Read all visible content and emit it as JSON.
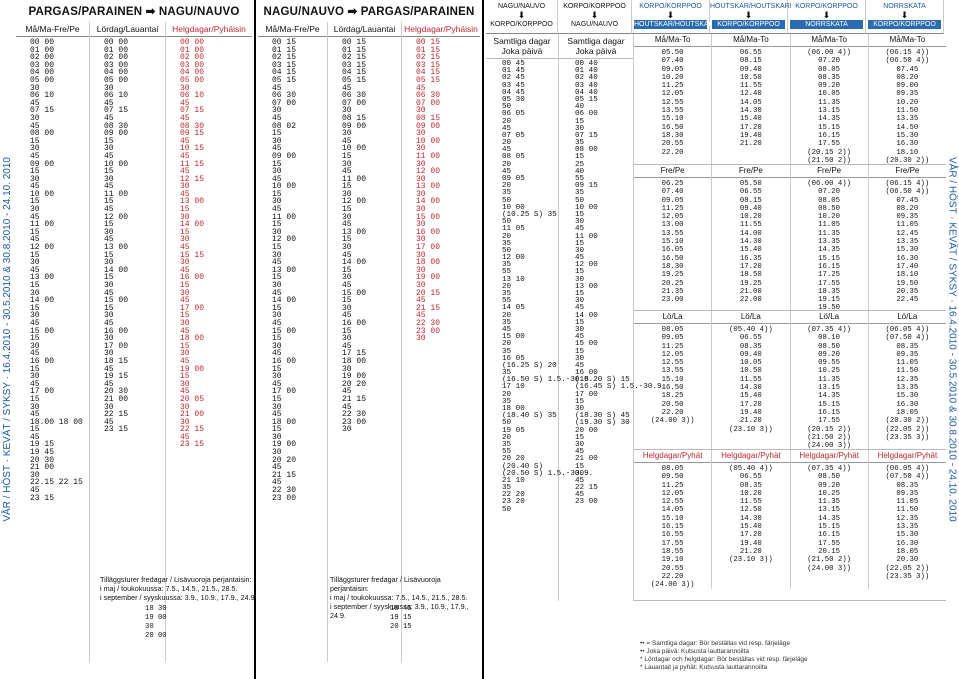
{
  "vertical_left": "VÅR / HÖST · KEVÄT / SYKSY · 16.4.2010 - 30.5.2010 & 30.8.2010 - 24.10. 2010",
  "vertical_right": "VÅR / HÖST · KEVÄT / SYKSY · 16.4.2010 - 30.5.2010 & 30.8.2010 - 24.10. 2010",
  "left": {
    "title": "PARGAS/PARAINEN ➡ NAGU/NAUVO",
    "cols": [
      {
        "head": "Må/Ma-Fre/Pe",
        "red": false,
        "times": [
          "00 00",
          "01 00",
          "02 00",
          "03 00",
          "04 00",
          "05 00",
          "30",
          "06 10",
          "45",
          "07 15",
          "30",
          "45",
          "08 00",
          "15",
          "30",
          "45",
          "09 00",
          "15",
          "30",
          "45",
          "10 00",
          "15",
          "30",
          "45",
          "11 00",
          "15",
          "45",
          "12 00",
          "15",
          "30",
          "45",
          "13 00",
          "15",
          "30",
          "14 00",
          "15",
          "30",
          "45",
          "15 00",
          "15",
          "30",
          "45",
          "16 00",
          "15",
          "30",
          "45",
          "17 00",
          "15",
          "30",
          "45",
          "18.00 18 00",
          "15",
          "45",
          "19 15",
          "19 45",
          "20 30",
          "21 00",
          "30",
          "22.15 22 15",
          "45",
          "23 15"
        ]
      },
      {
        "head": "Lördag/Lauantai",
        "red": false,
        "times": [
          "00 00",
          "01 00",
          "02 00",
          "03 00",
          "04 00",
          "05 00",
          "30",
          "06 10",
          "45",
          "07 15",
          "45",
          "08 30",
          "09 00",
          "15",
          "30",
          "45",
          "10 00",
          "15",
          "30",
          "45",
          "11 00",
          "15",
          "45",
          "12 00",
          "15",
          "30",
          "45",
          "13 00",
          "15",
          "30",
          "14 00",
          "15",
          "30",
          "45",
          "15 00",
          "15",
          "30",
          "45",
          "16 00",
          "30",
          "17 00",
          "30",
          "18 15",
          "45",
          "19 15",
          "45",
          "20 30",
          "21 00",
          "30",
          "22 15",
          "45",
          "23 15"
        ]
      },
      {
        "head": "Helgdagar/Pyhäisin",
        "red": true,
        "times": [
          "00 00",
          "01 00",
          "02 00",
          "03 00",
          "04 00",
          "05 00",
          "30",
          "06 10",
          "45",
          "07 15",
          "45",
          "08 30",
          "09 15",
          "45",
          "10 15",
          "45",
          "11 15",
          "45",
          "12 15",
          "30",
          "45",
          "13 00",
          "15",
          "30",
          "14 00",
          "15",
          "30",
          "45",
          "15 15",
          "30",
          "45",
          "16 00",
          "15",
          "30",
          "45",
          "17 00",
          "15",
          "30",
          "45",
          "18 00",
          "15",
          "30",
          "45",
          "19 00",
          "15",
          "30",
          "45",
          "20 05",
          "30",
          "21 00",
          "30",
          "22 15",
          "45",
          "23 15"
        ]
      }
    ],
    "note": "Tilläggsturer fredagar / Lisävuoroja perjantaisin:\ni maj / toukokuussa: 7.5., 14.5., 21.5., 28.5.\ni september / syyskuussa: 3.9., 10.9., 17.9., 24.9.",
    "extra": [
      "18 30",
      "19 00",
      "30",
      "20 00"
    ]
  },
  "mid": {
    "title": "NAGU/NAUVO ➡ PARGAS/PARAINEN",
    "cols": [
      {
        "head": "Må/Ma-Fre/Pe",
        "red": false,
        "times": [
          "00 15",
          "01 15",
          "02 15",
          "03 15",
          "04 15",
          "05 15",
          "45",
          "06 30",
          "07 00",
          "30",
          "45",
          "08 02",
          "15",
          "30",
          "45",
          "09 00",
          "15",
          "30",
          "45",
          "10 00",
          "15",
          "30",
          "45",
          "11 00",
          "15",
          "30",
          "12 00",
          "15",
          "30",
          "45",
          "13 00",
          "15",
          "30",
          "45",
          "14 00",
          "15",
          "30",
          "45",
          "15 00",
          "15",
          "30",
          "45",
          "16 00",
          "15",
          "30",
          "45",
          "17 00",
          "15",
          "30",
          "45",
          "18 00",
          "15",
          "30",
          "19 00",
          "30",
          "20 20",
          "45",
          "21 15",
          "45",
          "22 30",
          "23 00"
        ]
      },
      {
        "head": "Lördag/Lauantai",
        "red": false,
        "times": [
          "00 15",
          "01 15",
          "02 15",
          "03 15",
          "04 15",
          "05 15",
          "45",
          "06 30",
          "07 00",
          "30",
          "08 15",
          "09 00",
          "30",
          "45",
          "10 00",
          "15",
          "30",
          "45",
          "11 00",
          "15",
          "30",
          "12 00",
          "15",
          "30",
          "45",
          "13 00",
          "15",
          "30",
          "45",
          "14 00",
          "15",
          "30",
          "45",
          "15 00",
          "15",
          "30",
          "45",
          "16 00",
          "15",
          "30",
          "45",
          "17 15",
          "18 00",
          "30",
          "19 00",
          "20 20",
          "45",
          "21 15",
          "45",
          "22 30",
          "23 00",
          "30"
        ]
      },
      {
        "head": "Helgdagar/Pyhäisin",
        "red": true,
        "times": [
          "00 15",
          "01 15",
          "02 15",
          "03 15",
          "04 15",
          "05 15",
          "45",
          "06 30",
          "07 00",
          "30",
          "08 15",
          "09 00",
          "30",
          "10 00",
          "30",
          "11 00",
          "30",
          "12 00",
          "30",
          "13 00",
          "30",
          "14 00",
          "30",
          "15 00",
          "30",
          "16 00",
          "30",
          "17 00",
          "30",
          "18 00",
          "30",
          "19 00",
          "30",
          "20 15",
          "45",
          "21 15",
          "45",
          "22 30",
          "23 00",
          "30"
        ]
      }
    ],
    "note": "Tilläggsturer fredagar / Lisävuoroja perjantaisin:\ni maj / toukokuussa: 7.5., 14.5., 21.5., 28.5.\ni september / syyskuussa: 3.9., 10.9., 17.9., 24.9.",
    "extra": [
      "18 45",
      "19 15",
      "20 15"
    ]
  },
  "korpo": {
    "stops": [
      {
        "from": "NAGU/NAUVO",
        "to": "KORPO/KORPPOO",
        "hl": false
      },
      {
        "from": "KORPO/KORPPOO",
        "to": "NAGU/NAUVO",
        "hl": false
      },
      {
        "from": "KORPO/KORPPOO",
        "to": "HOUTSKAR/HOUTSKARI",
        "hl": true
      },
      {
        "from": "HOUTSKAR/HOUTSKARI",
        "to": "KORPO/KORPPOO",
        "hl": true
      },
      {
        "from": "KORPO/KORPPOO",
        "to": "NORRSKATA",
        "hl": true
      },
      {
        "from": "NORRSKATA",
        "to": "KORPO/KORPPOO",
        "hl": true
      }
    ],
    "sub1": "Samtliga dagar\nJoka päivä",
    "sub2": "Samtliga dagar\nJoka päivä",
    "col1": [
      "00 45",
      "01 45",
      "02 45",
      "03 45",
      "04 45",
      "05 30",
      "50",
      "06 05",
      "20",
      "45",
      "07 05",
      "20",
      "45",
      "08 05",
      "20",
      "45",
      "09 05",
      "20",
      "35",
      "50",
      "10 00",
      "(10.25 S) 35",
      "50",
      "11 05",
      "20",
      "35",
      "50",
      "12 00",
      "35",
      "55",
      "13 10",
      "20",
      "35",
      "55",
      "14 05",
      "20",
      "35",
      "45",
      "15 00",
      "20",
      "35",
      "16 05",
      "(16.25 S) 20",
      "35",
      "(16.50 S) 1.5.-30.9.",
      "17 10",
      "20",
      "35",
      "18 00",
      "(18.40 S) 35",
      "50",
      "19 05",
      "20",
      "35",
      "55",
      "20 20",
      "(20.40 S)",
      "(20.50 S) 1.5.-30.9.",
      "21 10",
      "35",
      "22 20",
      "23 20",
      "50"
    ],
    "col2": [
      "00 40",
      "01 40",
      "02 40",
      "03 40",
      "04 40",
      "05 15",
      "40",
      "06 00",
      "15",
      "30",
      "07 15",
      "35",
      "08 00",
      "15",
      "25",
      "40",
      "55",
      "09 15",
      "35",
      "50",
      "10 00",
      "15",
      "30",
      "45",
      "11 00",
      "15",
      "30",
      "45",
      "12 00",
      "15",
      "30",
      "13 00",
      "15",
      "30",
      "45",
      "14 00",
      "15",
      "30",
      "45",
      "15 00",
      "15",
      "30",
      "45",
      "16 00",
      "(16.20 S) 15",
      "(16.45 S) 1.5.-30.9.",
      "17 00",
      "15",
      "30",
      "(18.30 S) 45",
      "(19.30 S) 30",
      "20 00",
      "15",
      "30",
      "45",
      "21 00",
      "15",
      "30",
      "45",
      "22 15",
      "45",
      "23 00"
    ],
    "blocks": [
      {
        "title": "Må/Ma-To",
        "red": false,
        "c1": [
          "05.50",
          "07.40",
          "09.05",
          "10.20",
          "11.25",
          "12.05",
          "12.55",
          "13.55",
          "15.10",
          "16.50",
          "18.30",
          "20.55",
          "22.20"
        ],
        "c2": [
          "06.55",
          "08.15",
          "09.40",
          "10.50",
          "11.55",
          "12.40",
          "14.05",
          "14.30",
          "15.40",
          "17.20",
          "19.40",
          "21.20"
        ],
        "c3": [
          "(06.00 4))",
          "07.20",
          "08.05",
          "08.35",
          "09.20",
          "10.05",
          "11.35",
          "13.15",
          "14.35",
          "15.15",
          "16.15",
          "17.55",
          "(20.15 2))",
          "(21.50 2))"
        ],
        "c4": [
          "(06.15 4))",
          "(06.50 4))",
          "07.45",
          "08.20",
          "09.00",
          "09.35",
          "10.20",
          "11.50",
          "13.35",
          "14.50",
          "15.30",
          "16.30",
          "18.10",
          "(20.30 2))",
          "(22.05 2))"
        ]
      },
      {
        "title": "Fre/Pe",
        "red": false,
        "c1": [
          "06.25",
          "07.40",
          "09.05",
          "11.25",
          "12.05",
          "13.00",
          "13.55",
          "15.10",
          "16.05",
          "16.50",
          "18.30",
          "19.25",
          "20.25",
          "21.35",
          "23.00"
        ],
        "c2": [
          "05.50",
          "06.55",
          "08.15",
          "09.40",
          "10.20",
          "11.55",
          "14.00",
          "14.30",
          "15.40",
          "16.35",
          "17.20",
          "18.50",
          "19.25",
          "21.00",
          "22.00"
        ],
        "c3": [
          "(06.00 4))",
          "07.20",
          "08.05",
          "08.50",
          "10.20",
          "11.05",
          "11.35",
          "13.35",
          "14.35",
          "15.15",
          "16.15",
          "17.25",
          "17.55",
          "18.35",
          "19.15",
          "19.50",
          "20.35",
          "22.45"
        ],
        "c4": [
          "(06.15 4))",
          "(06.50 4))",
          "07.45",
          "08.20",
          "09.35",
          "11.05",
          "12.45",
          "13.35",
          "15.30",
          "16.30",
          "17.40",
          "18.10",
          "19.50",
          "20.35",
          "22.45"
        ]
      },
      {
        "title": "Lö/La",
        "red": false,
        "c1": [
          "08.05",
          "09.05",
          "11.25",
          "12.05",
          "12.55",
          "13.55",
          "15.10",
          "16.50",
          "18.25",
          "20.50",
          "22.20",
          "(24.00 3))"
        ],
        "c2": [
          "(05.40 4))",
          "06.55",
          "08.35",
          "09.40",
          "10.05",
          "10.50",
          "11.55",
          "14.30",
          "15.40",
          "17.20",
          "19.40",
          "21.20",
          "(23.10 3))"
        ],
        "c3": [
          "(07.35 4))",
          "08.10",
          "08.50",
          "09.20",
          "09.55",
          "10.25",
          "11.35",
          "13.15",
          "14.35",
          "15.15",
          "16.15",
          "17.55",
          "(20.15 2))",
          "(21.50 2))",
          "(24.00 3))"
        ],
        "c4": [
          "(06.05 4))",
          "(07.50 4))",
          "08.35",
          "09.35",
          "11.05",
          "11.50",
          "12.35",
          "13.35",
          "15.30",
          "16.30",
          "18.05",
          "(20.30 2))",
          "(22.05 2))",
          "(23.35 3))"
        ]
      },
      {
        "title": "Helgdagar/Pyhät",
        "red": true,
        "c1": [
          "08.05",
          "09.50",
          "11.25",
          "12.05",
          "12.55",
          "14.05",
          "15.10",
          "16.15",
          "16.55",
          "17.55",
          "18.55",
          "19.10",
          "20.55",
          "22.20",
          "(24.00 3))"
        ],
        "c2": [
          "(05.40 4))",
          "06.55",
          "08.35",
          "10.20",
          "11.55",
          "12.50",
          "14.30",
          "15.40",
          "17.20",
          "19.40",
          "21.20",
          "(23.10 3))"
        ],
        "c3": [
          "(07.35 4))",
          "08.50",
          "09.20",
          "10.25",
          "11.35",
          "13.15",
          "14.35",
          "15.15",
          "16.15",
          "17.55",
          "20.15",
          "(21.50 2))",
          "(24.00 3))"
        ],
        "c4": [
          "(06.05 4))",
          "(07.50 4))",
          "08.35",
          "09.35",
          "11.05",
          "11.50",
          "12.35",
          "13.35",
          "15.30",
          "16.30",
          "18.05",
          "20.30",
          "(22.05 2))",
          "(23.35 3))"
        ]
      }
    ],
    "legend": [
      "•• = Samtliga dagar: Bör beställas vid resp. färjeläge",
      "•• Joka päivä: Kutsusta lauttarannoilta",
      "* Lördagar och helgdagar: Bör beställas vid resp. färjeläge",
      "* Lauantait ja pyhät: Kutsusta lauttarannoilta"
    ]
  }
}
